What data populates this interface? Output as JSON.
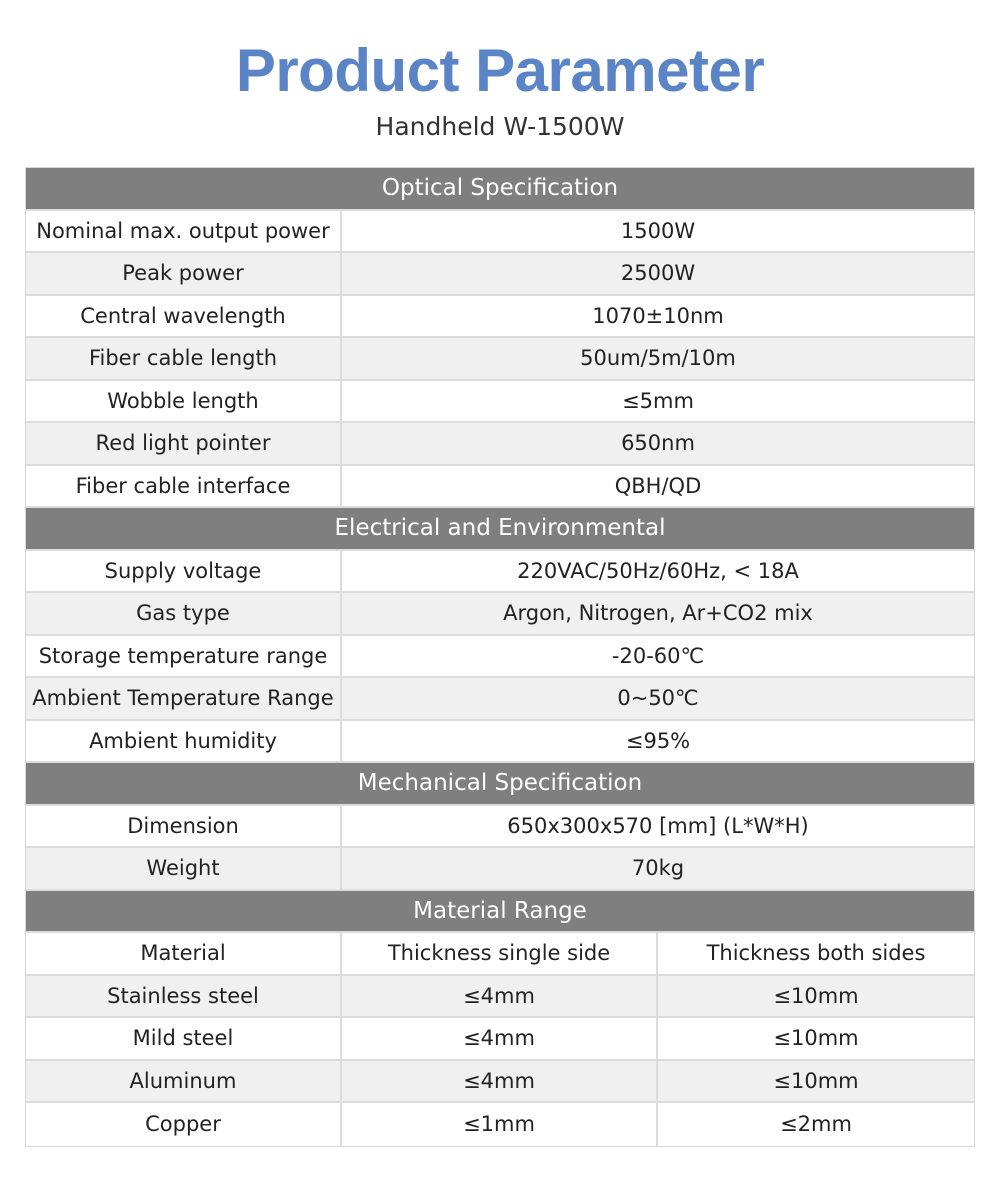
{
  "header": {
    "title": "Product Parameter",
    "subtitle": "Handheld W-1500W"
  },
  "colors": {
    "title": "#5b84c6",
    "section_bg": "#7f7f7f",
    "alt_row": "#f0f0f0"
  },
  "sections": [
    {
      "title": "Optical Specification",
      "rows": [
        [
          "Nominal max. output power",
          "1500W"
        ],
        [
          "Peak power",
          "2500W"
        ],
        [
          "Central wavelength",
          "1070±10nm"
        ],
        [
          "Fiber cable length",
          "50um/5m/10m"
        ],
        [
          "Wobble length",
          "≤5mm"
        ],
        [
          "Red light pointer",
          "650nm"
        ],
        [
          "Fiber cable interface",
          "QBH/QD"
        ]
      ]
    },
    {
      "title": "Electrical and Environmental",
      "rows": [
        [
          "Supply voltage",
          "220VAC/50Hz/60Hz,  < 18A"
        ],
        [
          "Gas type",
          "Argon, Nitrogen, Ar+CO2 mix"
        ],
        [
          "Storage temperature range",
          "-20-60℃"
        ],
        [
          "Ambient Temperature Range",
          "0~50℃"
        ],
        [
          "Ambient humidity",
          "≤95%"
        ]
      ]
    },
    {
      "title": "Mechanical Specification",
      "rows": [
        [
          "Dimension",
          "650x300x570 [mm] (L*W*H)"
        ],
        [
          "Weight",
          "70kg"
        ]
      ]
    },
    {
      "title": "Material Range",
      "rows": [
        [
          "Material",
          "Thickness single side",
          "Thickness both sides"
        ],
        [
          "Stainless steel",
          "≤4mm",
          "≤10mm"
        ],
        [
          "Mild steel",
          "≤4mm",
          "≤10mm"
        ],
        [
          "Aluminum",
          "≤4mm",
          "≤10mm"
        ],
        [
          "Copper",
          "≤1mm",
          "≤2mm"
        ]
      ]
    }
  ]
}
